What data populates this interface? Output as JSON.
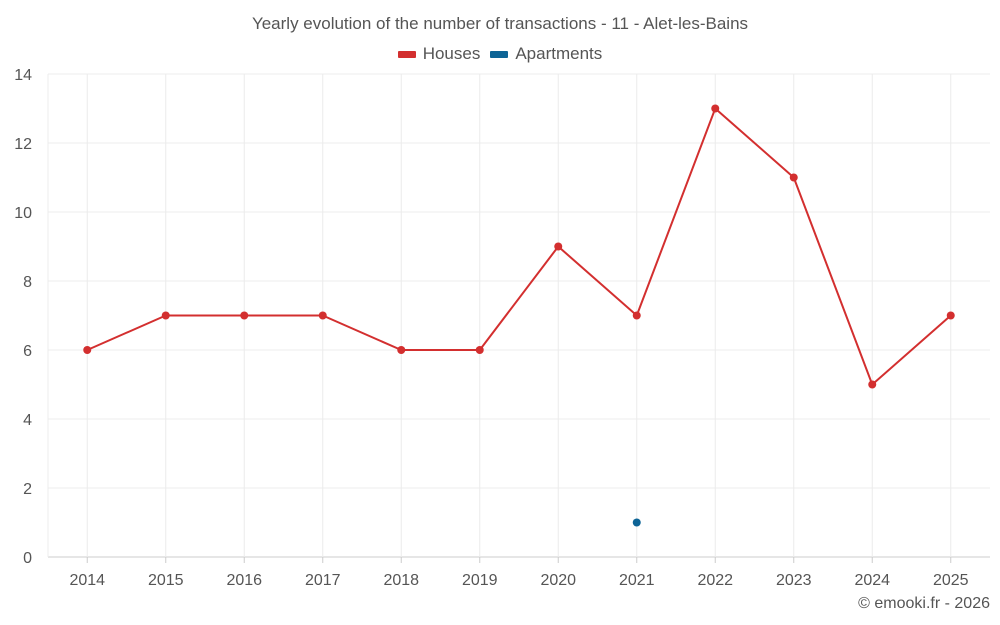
{
  "chart_data": {
    "type": "line",
    "title": "Yearly evolution of the number of transactions - 11 - Alet-les-Bains",
    "categories": [
      "2014",
      "2015",
      "2016",
      "2017",
      "2018",
      "2019",
      "2020",
      "2021",
      "2022",
      "2023",
      "2024",
      "2025"
    ],
    "series": [
      {
        "name": "Houses",
        "color": "#d32f2f",
        "values": [
          6,
          7,
          7,
          7,
          6,
          6,
          9,
          7,
          13,
          11,
          5,
          7
        ]
      },
      {
        "name": "Apartments",
        "color": "#0d6496",
        "values": [
          null,
          null,
          null,
          null,
          null,
          null,
          null,
          1,
          null,
          null,
          null,
          null
        ]
      }
    ],
    "ylim": [
      0,
      14
    ],
    "yticks": [
      0,
      2,
      4,
      6,
      8,
      10,
      12,
      14
    ],
    "grid": true,
    "legend_position": "top-center"
  },
  "footer": {
    "credit": "© emooki.fr - 2026"
  }
}
